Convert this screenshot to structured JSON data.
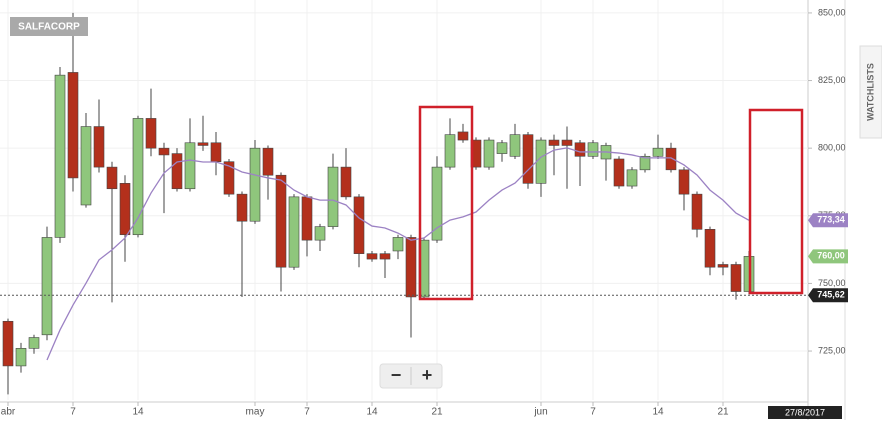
{
  "chart_data": {
    "type": "candlestick",
    "title": "SALFACORP",
    "categories": [
      "abr",
      null,
      null,
      null,
      null,
      "7",
      null,
      null,
      null,
      null,
      "14",
      null,
      null,
      null,
      null,
      null,
      null,
      null,
      null,
      "may",
      null,
      null,
      null,
      "7",
      null,
      null,
      null,
      null,
      "14",
      null,
      null,
      null,
      null,
      "21",
      null,
      null,
      null,
      null,
      null,
      null,
      null,
      "jun",
      null,
      null,
      null,
      "7",
      null,
      null,
      null,
      null,
      "14",
      null,
      null,
      null,
      null,
      "21",
      null,
      null
    ],
    "open": [
      736,
      719.5,
      726,
      731,
      767,
      828,
      779,
      808,
      793,
      787,
      768,
      811,
      800,
      798,
      785,
      802,
      802,
      795,
      783,
      773,
      800,
      790,
      756,
      782,
      766,
      771,
      793,
      782,
      761,
      761,
      762,
      767,
      745,
      766,
      793,
      806,
      803,
      793,
      798,
      797,
      805,
      787,
      803,
      803,
      802,
      797,
      796,
      796,
      786,
      792,
      797,
      800,
      792,
      783,
      770,
      757,
      757,
      747
    ],
    "high": [
      737,
      728,
      731,
      771,
      830,
      850,
      813,
      818,
      795,
      790,
      812,
      822,
      802,
      800,
      811,
      812,
      806,
      796,
      784,
      803,
      801,
      791,
      783,
      783,
      772,
      798,
      800,
      783,
      762,
      762,
      768,
      768,
      767,
      797,
      811,
      809,
      804,
      804,
      803,
      809,
      806,
      804,
      805,
      808,
      803,
      803,
      802,
      797,
      793,
      798,
      805,
      802,
      793,
      784,
      771,
      758,
      758,
      762
    ],
    "low": [
      709,
      717,
      724,
      729,
      765,
      784,
      778,
      791,
      743,
      758,
      767,
      797,
      776,
      784,
      784,
      799,
      790,
      782,
      745,
      772,
      781,
      747,
      755,
      760,
      762,
      770,
      781,
      756,
      758,
      752,
      759,
      730,
      744,
      765,
      792,
      802,
      792,
      792,
      795,
      796,
      785,
      782,
      790,
      785,
      786,
      796,
      788,
      785,
      785,
      791,
      796,
      791,
      777,
      767,
      753,
      753,
      744,
      746
    ],
    "close": [
      719.5,
      726,
      730,
      767,
      827,
      789,
      808,
      793,
      785,
      768,
      811,
      800,
      797.5,
      785,
      802,
      801,
      795,
      783,
      773,
      800,
      790,
      756,
      782,
      766,
      771,
      793,
      782,
      761,
      759,
      759,
      767,
      745,
      766,
      793,
      805,
      803,
      793,
      803,
      802,
      805,
      787,
      803,
      801,
      801,
      797,
      802,
      801,
      786,
      792,
      797,
      800,
      792,
      783,
      770,
      756,
      756,
      747,
      760
    ],
    "up_color": "#8fc67c",
    "down_color": "#b3301c",
    "ma": [
      null,
      null,
      null,
      721.7,
      732.8,
      742,
      750.1,
      758.7,
      762.4,
      766.8,
      774.2,
      783.4,
      790.8,
      794.9,
      795.6,
      794.9,
      794.9,
      793.4,
      791.2,
      790.1,
      789,
      788.2,
      784.5,
      782,
      780.8,
      780.8,
      779,
      774.2,
      771.2,
      770.5,
      768.6,
      766,
      766.8,
      770.5,
      773.4,
      774.6,
      776.4,
      780.8,
      784.5,
      787.1,
      791.9,
      796.7,
      799.3,
      800.1,
      798.6,
      798.6,
      798.6,
      798.2,
      797.5,
      796.4,
      796.4,
      796.4,
      793.8,
      790.1,
      784.5,
      780.8,
      776,
      773.34
    ],
    "ma_color": "#9c82c4",
    "ylim": [
      706.9,
      853.3
    ],
    "yticks": [
      {
        "value": 725,
        "label": "725,00"
      },
      {
        "value": 750,
        "label": "750,00"
      },
      {
        "value": 775,
        "label": "775,00"
      },
      {
        "value": 800,
        "label": "800,00"
      },
      {
        "value": 825,
        "label": "825,00"
      },
      {
        "value": 850,
        "label": "850,00"
      }
    ],
    "grid": true,
    "crosshair": {
      "value": 745.62,
      "label": "745,62"
    },
    "close_badge": {
      "value": 760,
      "label": "760,00"
    },
    "ma_badge": {
      "value": 773.34,
      "label": "773,34"
    },
    "cursor_date": "27/8/2017"
  },
  "ui": {
    "zoom_out": "−",
    "zoom_in": "+",
    "side_tab": "WATCHLISTS"
  }
}
